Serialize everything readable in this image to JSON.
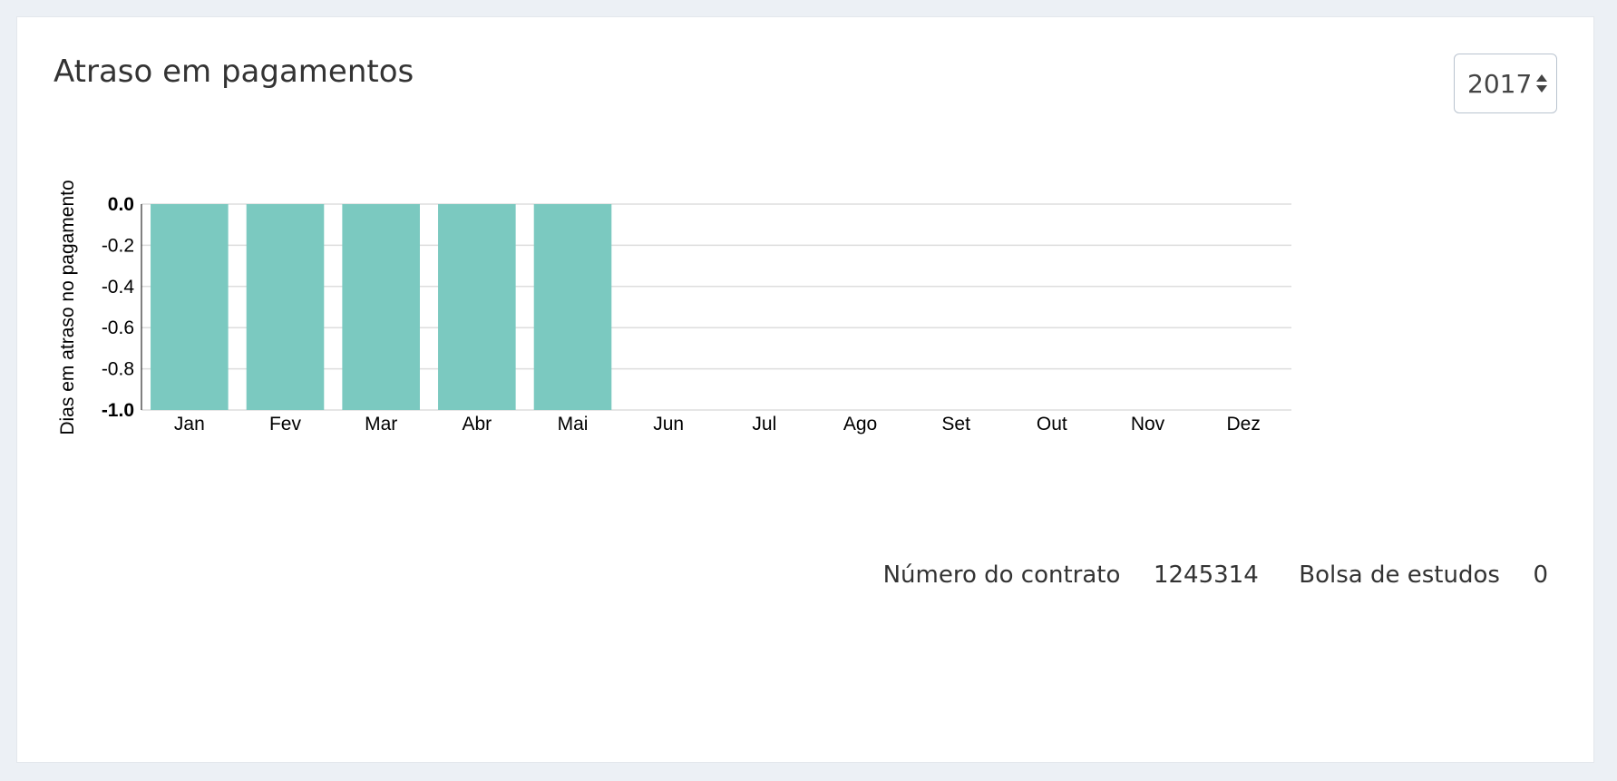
{
  "panel": {
    "title": "Atraso em pagamentos",
    "year_select": {
      "value": "2017"
    }
  },
  "info": {
    "contract_label": "Número do contrato",
    "contract_value": "1245314",
    "scholarship_label": "Bolsa de estudos",
    "scholarship_value": "0"
  },
  "chart_data": {
    "type": "bar",
    "categories": [
      "Jan",
      "Fev",
      "Mar",
      "Abr",
      "Mai",
      "Jun",
      "Jul",
      "Ago",
      "Set",
      "Out",
      "Nov",
      "Dez"
    ],
    "values": [
      -1.0,
      -1.0,
      -1.0,
      -1.0,
      -1.0,
      null,
      null,
      null,
      null,
      null,
      null,
      null
    ],
    "ylabel": "Dias em atraso no pagamento",
    "xlabel": "",
    "ylim": [
      -1.0,
      0.0
    ],
    "yticks": [
      "0.0",
      "-0.2",
      "-0.4",
      "-0.6",
      "-0.8",
      "-1.0"
    ],
    "grid": true,
    "bar_color": "#7bc9c0"
  }
}
